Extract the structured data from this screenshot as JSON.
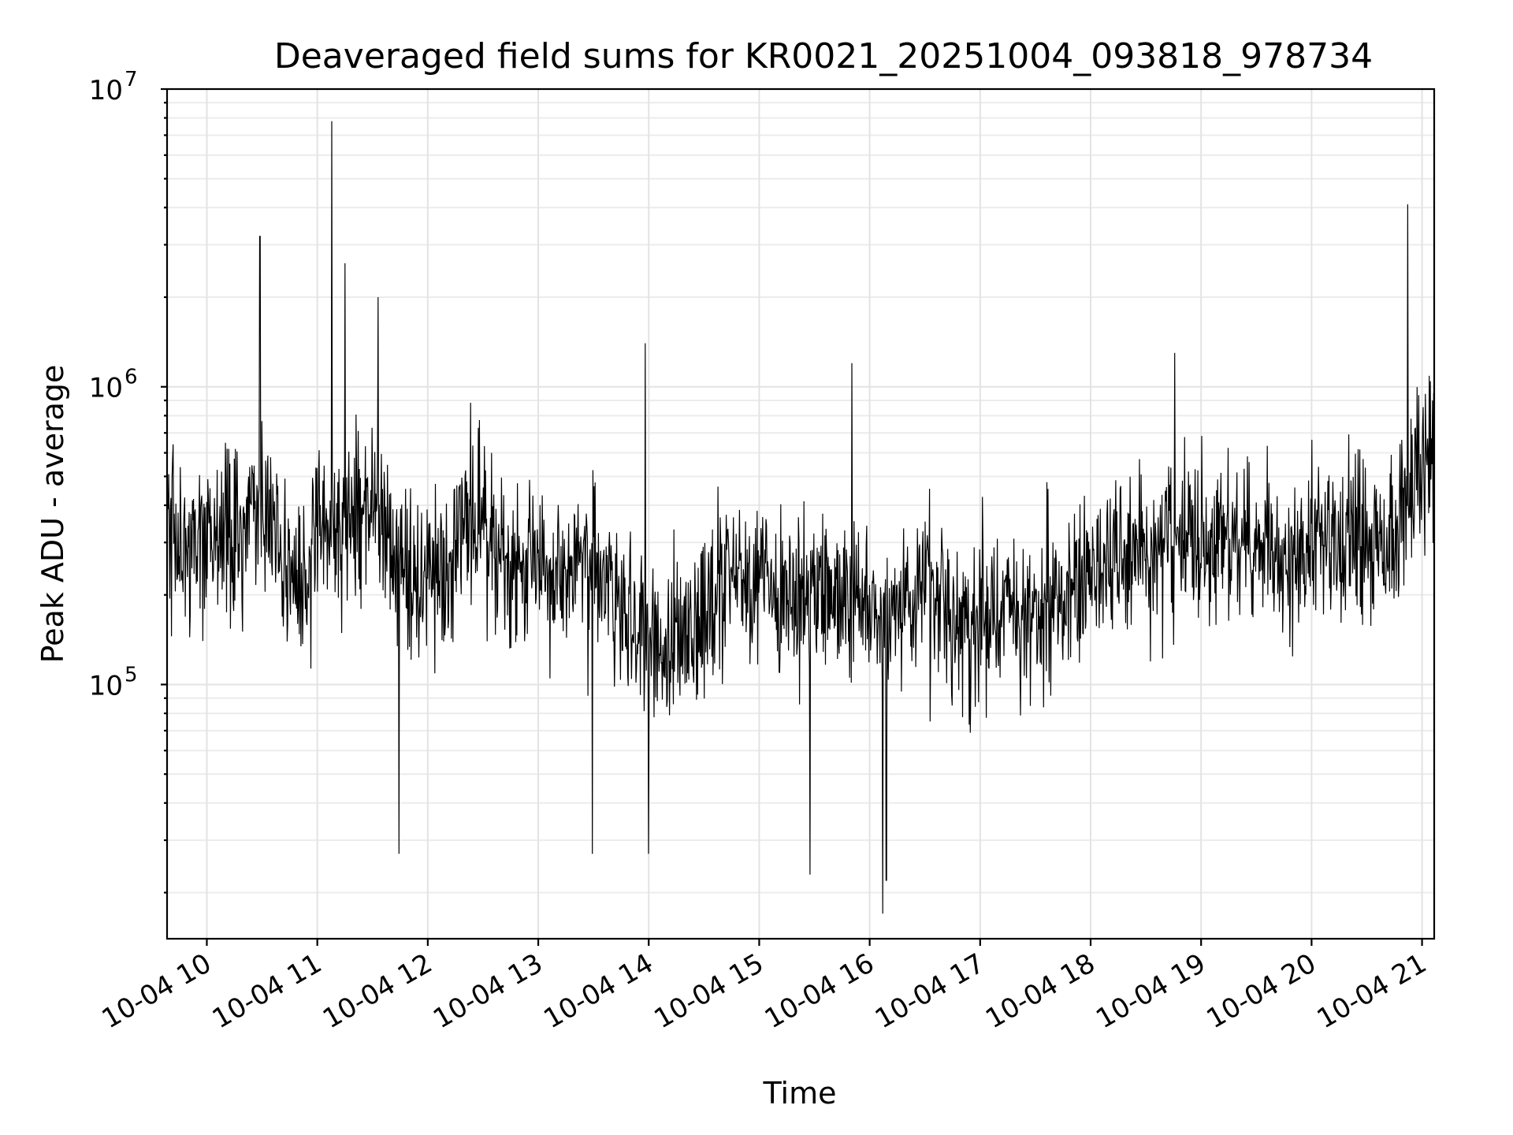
{
  "chart_data": {
    "type": "line",
    "title": "Deaveraged field sums for KR0021_20251004_093818_978734",
    "xlabel": "Time",
    "ylabel": "Peak ADU - average",
    "yscale": "log",
    "ylim": [
      14000,
      10000000
    ],
    "xlim_hours": [
      9.64,
      21.11
    ],
    "grid": true,
    "y_tick_labels": [
      {
        "value": 100000,
        "base": "10",
        "exp": "5"
      },
      {
        "value": 1000000,
        "base": "10",
        "exp": "6"
      },
      {
        "value": 10000000,
        "base": "10",
        "exp": "7"
      }
    ],
    "x_tick_labels": [
      {
        "hour": 10,
        "label": "10-04 10"
      },
      {
        "hour": 11,
        "label": "10-04 11"
      },
      {
        "hour": 12,
        "label": "10-04 12"
      },
      {
        "hour": 13,
        "label": "10-04 13"
      },
      {
        "hour": 14,
        "label": "10-04 14"
      },
      {
        "hour": 15,
        "label": "10-04 15"
      },
      {
        "hour": 16,
        "label": "10-04 16"
      },
      {
        "hour": 17,
        "label": "10-04 17"
      },
      {
        "hour": 18,
        "label": "10-04 18"
      },
      {
        "hour": 19,
        "label": "10-04 19"
      },
      {
        "hour": 20,
        "label": "10-04 20"
      },
      {
        "hour": 21,
        "label": "10-04 21"
      }
    ],
    "series": [
      {
        "name": "deaveraged field sums",
        "color": "#000000",
        "points_hours": [
          9.64,
          9.72,
          9.84,
          9.95,
          10.1,
          10.3,
          10.5,
          10.7,
          10.9,
          11.0,
          11.15,
          11.3,
          11.5,
          11.7,
          11.9,
          12.1,
          12.3,
          12.5,
          12.7,
          12.9,
          13.1,
          13.3,
          13.5,
          13.6,
          13.8,
          14.0,
          14.2,
          14.4,
          14.6,
          14.8,
          15.0,
          15.2,
          15.4,
          15.6,
          15.8,
          16.0,
          16.2,
          16.4,
          16.6,
          16.8,
          17.0,
          17.2,
          17.4,
          17.6,
          17.8,
          18.0,
          18.2,
          18.4,
          18.6,
          18.8,
          19.0,
          19.2,
          19.4,
          19.6,
          19.8,
          20.0,
          20.2,
          20.4,
          20.6,
          20.8,
          20.95,
          21.11
        ],
        "points_values": [
          350000,
          330000,
          300000,
          290000,
          320000,
          330000,
          420000,
          260000,
          230000,
          300000,
          350000,
          370000,
          410000,
          300000,
          210000,
          220000,
          300000,
          330000,
          250000,
          240000,
          250000,
          280000,
          240000,
          200000,
          160000,
          150000,
          140000,
          160000,
          210000,
          250000,
          210000,
          200000,
          210000,
          200000,
          210000,
          180000,
          170000,
          190000,
          200000,
          160000,
          160000,
          170000,
          175000,
          190000,
          210000,
          240000,
          280000,
          290000,
          290000,
          300000,
          310000,
          300000,
          300000,
          290000,
          280000,
          300000,
          290000,
          300000,
          290000,
          300000,
          550000,
          620000
        ],
        "notable_peaks": [
          {
            "hour": 10.48,
            "value": 3200000
          },
          {
            "hour": 11.13,
            "value": 7800000
          },
          {
            "hour": 11.25,
            "value": 2600000
          },
          {
            "hour": 11.55,
            "value": 2000000
          },
          {
            "hour": 13.97,
            "value": 1400000
          },
          {
            "hour": 15.84,
            "value": 1200000
          },
          {
            "hour": 18.76,
            "value": 1300000
          },
          {
            "hour": 20.87,
            "value": 4100000
          }
        ],
        "notable_troughs": [
          {
            "hour": 11.74,
            "value": 27000
          },
          {
            "hour": 13.49,
            "value": 27000
          },
          {
            "hour": 14.0,
            "value": 27000
          },
          {
            "hour": 15.46,
            "value": 23000
          },
          {
            "hour": 16.12,
            "value": 17000
          },
          {
            "hour": 16.15,
            "value": 22000
          }
        ]
      }
    ]
  }
}
